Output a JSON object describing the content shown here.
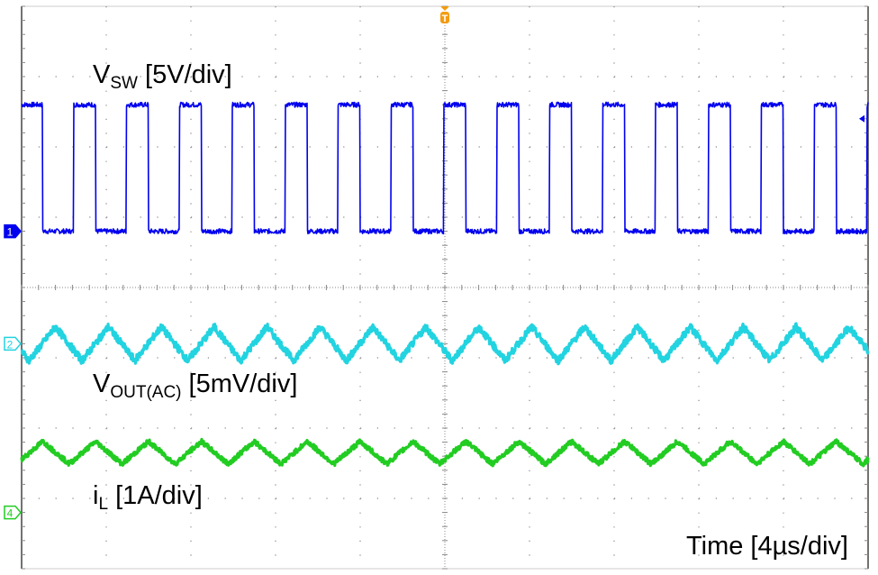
{
  "chart_data": {
    "type": "line",
    "title": "",
    "xlabel": "Time [4µs/div]",
    "x_unit": "µs",
    "xlim": [
      0,
      40
    ],
    "time_per_div_us": 4,
    "horizontal_divisions": 10,
    "vertical_divisions": 8,
    "trigger_time_us": 20,
    "grid": true,
    "colors": {
      "ch1": "#0000ee",
      "ch2": "#22d3e0",
      "ch4": "#22cc22",
      "trigger": "#f39c12",
      "grid": "#888888"
    },
    "series": [
      {
        "name": "VSW",
        "label_main": "V",
        "label_sub": "SW",
        "label_scale": " [5V/div]",
        "channel": "1",
        "scale_per_div": 5,
        "unit": "V",
        "waveform": "square",
        "period_us": 2.5,
        "duty": 0.42,
        "first_falling_edge_us": 1.0,
        "low_value": 0,
        "high_value": 9,
        "ref_div_from_top": 3.2
      },
      {
        "name": "VOUT(AC)",
        "label_main": "V",
        "label_sub": "OUT(AC)",
        "label_scale": " [5mV/div]",
        "channel": "2",
        "scale_per_div": 0.005,
        "unit": "V",
        "waveform": "triangle",
        "period_us": 2.5,
        "peak_to_peak": 0.0024,
        "offset": 0,
        "first_peak_us": 1.6,
        "ref_div_from_top": 4.8
      },
      {
        "name": "iL",
        "label_main": "i",
        "label_sub": "L",
        "label_scale": " [1A/div]",
        "channel": "4",
        "scale_per_div": 1,
        "unit": "A",
        "waveform": "triangle",
        "period_us": 2.5,
        "peak_to_peak": 0.32,
        "offset": 0.85,
        "first_peak_us": 1.0,
        "ref_div_from_top": 7.2
      }
    ]
  }
}
